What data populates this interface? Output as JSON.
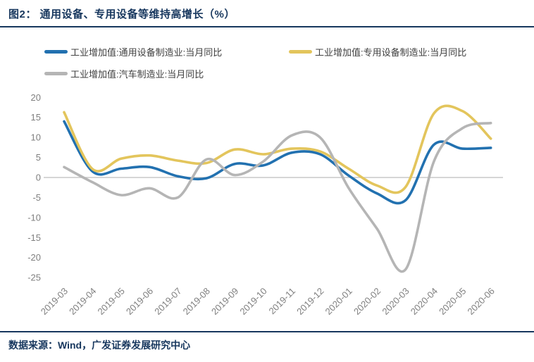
{
  "header": {
    "title": "图2： 通用设备、专用设备等维持高增长（%）"
  },
  "footer": {
    "source": "数据来源：Wind，广发证券发展研究中心"
  },
  "colors": {
    "accent_navy": "#17375E",
    "series_general_equipment": "#2271B0",
    "series_special_equipment": "#E3C55C",
    "series_automobile": "#B5B5B5",
    "axis_text": "#7F7F7F",
    "zero_line": "#C9C9C9",
    "legend_text": "#404040"
  },
  "chart_data": {
    "type": "line",
    "title": "通用设备、专用设备等维持高增长（%）",
    "xlabel": "",
    "ylabel": "",
    "categories": [
      "2019-03",
      "2019-04",
      "2019-05",
      "2019-06",
      "2019-07",
      "2019-08",
      "2019-09",
      "2019-10",
      "2019-11",
      "2019-12",
      "2020-01",
      "2020-02",
      "2020-03",
      "2020-04",
      "2020-05",
      "2020-06"
    ],
    "series": [
      {
        "name": "工业增加值:通用设备制造业:当月同比",
        "color": "#2271B0",
        "values": [
          14.0,
          1.5,
          2.2,
          2.6,
          0.3,
          -0.2,
          3.4,
          3.0,
          6.2,
          5.8,
          0.5,
          -4.0,
          -5.7,
          8.2,
          7.2,
          7.4
        ]
      },
      {
        "name": "工业增加值:专用设备制造业:当月同比",
        "color": "#E3C55C",
        "values": [
          16.3,
          2.1,
          4.7,
          5.5,
          4.2,
          3.6,
          7.0,
          5.8,
          7.2,
          6.5,
          2.2,
          -2.0,
          -2.4,
          16.0,
          16.6,
          9.7
        ]
      },
      {
        "name": "工业增加值:汽车制造业:当月同比",
        "color": "#B5B5B5",
        "values": [
          2.6,
          -1.2,
          -4.4,
          -2.7,
          -5.0,
          4.5,
          0.6,
          4.0,
          10.5,
          10.0,
          -2.6,
          -12.8,
          -23.0,
          4.0,
          12.3,
          13.6
        ]
      }
    ],
    "ylim": [
      -25,
      20
    ],
    "yticks": [
      20,
      15,
      10,
      5,
      0,
      -5,
      -10,
      -15,
      -20,
      -25
    ],
    "grid": "zero-line-only",
    "legend_position": "top-left",
    "smoothing": "spline",
    "x_tick_rotation": 45
  }
}
